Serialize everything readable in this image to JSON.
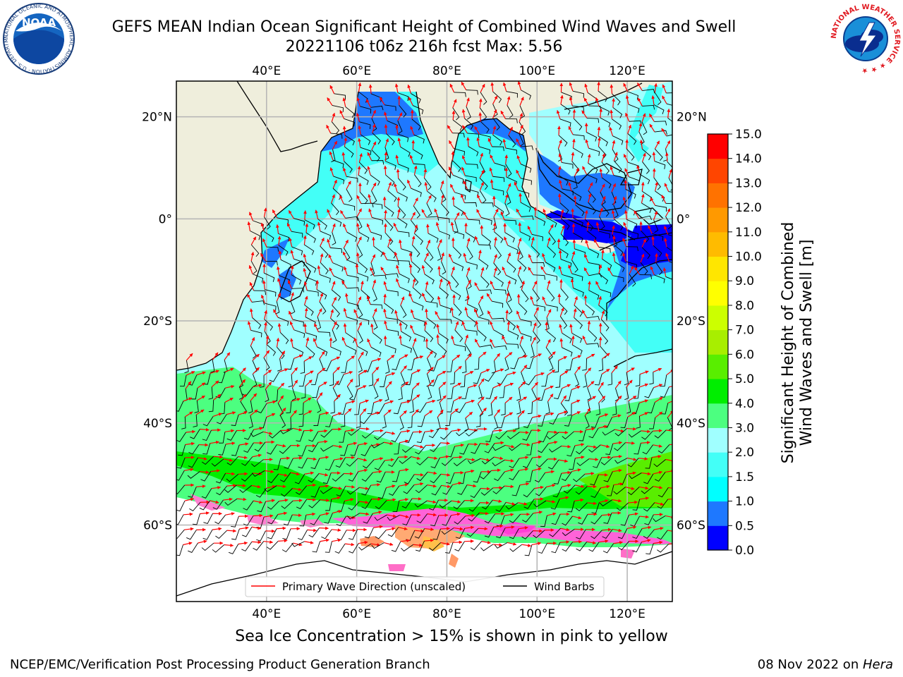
{
  "title": {
    "line1": "GEFS MEAN Indian Ocean Significant Height of Combined Wind Waves and Swell",
    "line2": "20221106 t06z 216h fcst   Max: 5.56"
  },
  "map": {
    "lon_ticks": [
      "40°E",
      "60°E",
      "80°E",
      "100°E",
      "120°E"
    ],
    "lon_values": [
      40,
      60,
      80,
      100,
      120
    ],
    "lat_ticks": [
      "20°N",
      "0°",
      "20°S",
      "40°S",
      "60°S"
    ],
    "lat_values": [
      20,
      0,
      -20,
      -40,
      -60
    ],
    "extent": {
      "lon_min": 20,
      "lon_max": 130,
      "lat_top": 27,
      "lat_bottom": -75
    },
    "land_color": "#efeedc",
    "grid_color": "#b4b4b4"
  },
  "legend": {
    "items": [
      {
        "label": "Primary Wave Direction (unscaled)",
        "color": "#ff0000"
      },
      {
        "label": "Wind Barbs",
        "color": "#000000"
      }
    ]
  },
  "colorbar": {
    "title_line1": "Significant Height of Combined",
    "title_line2": "Wind Waves and Swell [m]",
    "levels": [
      "0.0",
      "0.5",
      "1.0",
      "1.5",
      "2.0",
      "3.0",
      "4.0",
      "5.0",
      "6.0",
      "7.0",
      "8.0",
      "9.0",
      "10.0",
      "11.0",
      "12.0",
      "13.0",
      "14.0",
      "15.0"
    ],
    "colors": [
      "#0000ff",
      "#1e78ff",
      "#00ffff",
      "#43fff7",
      "#a0ffff",
      "#4cff80",
      "#00ee00",
      "#59ee00",
      "#a8ee00",
      "#ccff00",
      "#ffff00",
      "#ffe600",
      "#ffbb00",
      "#ff9900",
      "#ff7200",
      "#ff4500",
      "#ff0000"
    ]
  },
  "caption": "Sea Ice Concentration > 15% is shown in pink to yellow",
  "footer": {
    "left": "NCEP/EMC/Verification Post Processing Product Generation Branch",
    "right_date": "08 Nov 2022 on ",
    "right_host": "Hera"
  },
  "logos": {
    "noaa_text": "NOAA",
    "noaa_ring": "NATIONAL OCEANIC AND ATMOSPHERIC ADMINISTRATION · U.S. DEPARTMENT OF COMMERCE ·",
    "nws_ring": "NATIONAL WEATHER SERVICE ★ ★ ★"
  }
}
